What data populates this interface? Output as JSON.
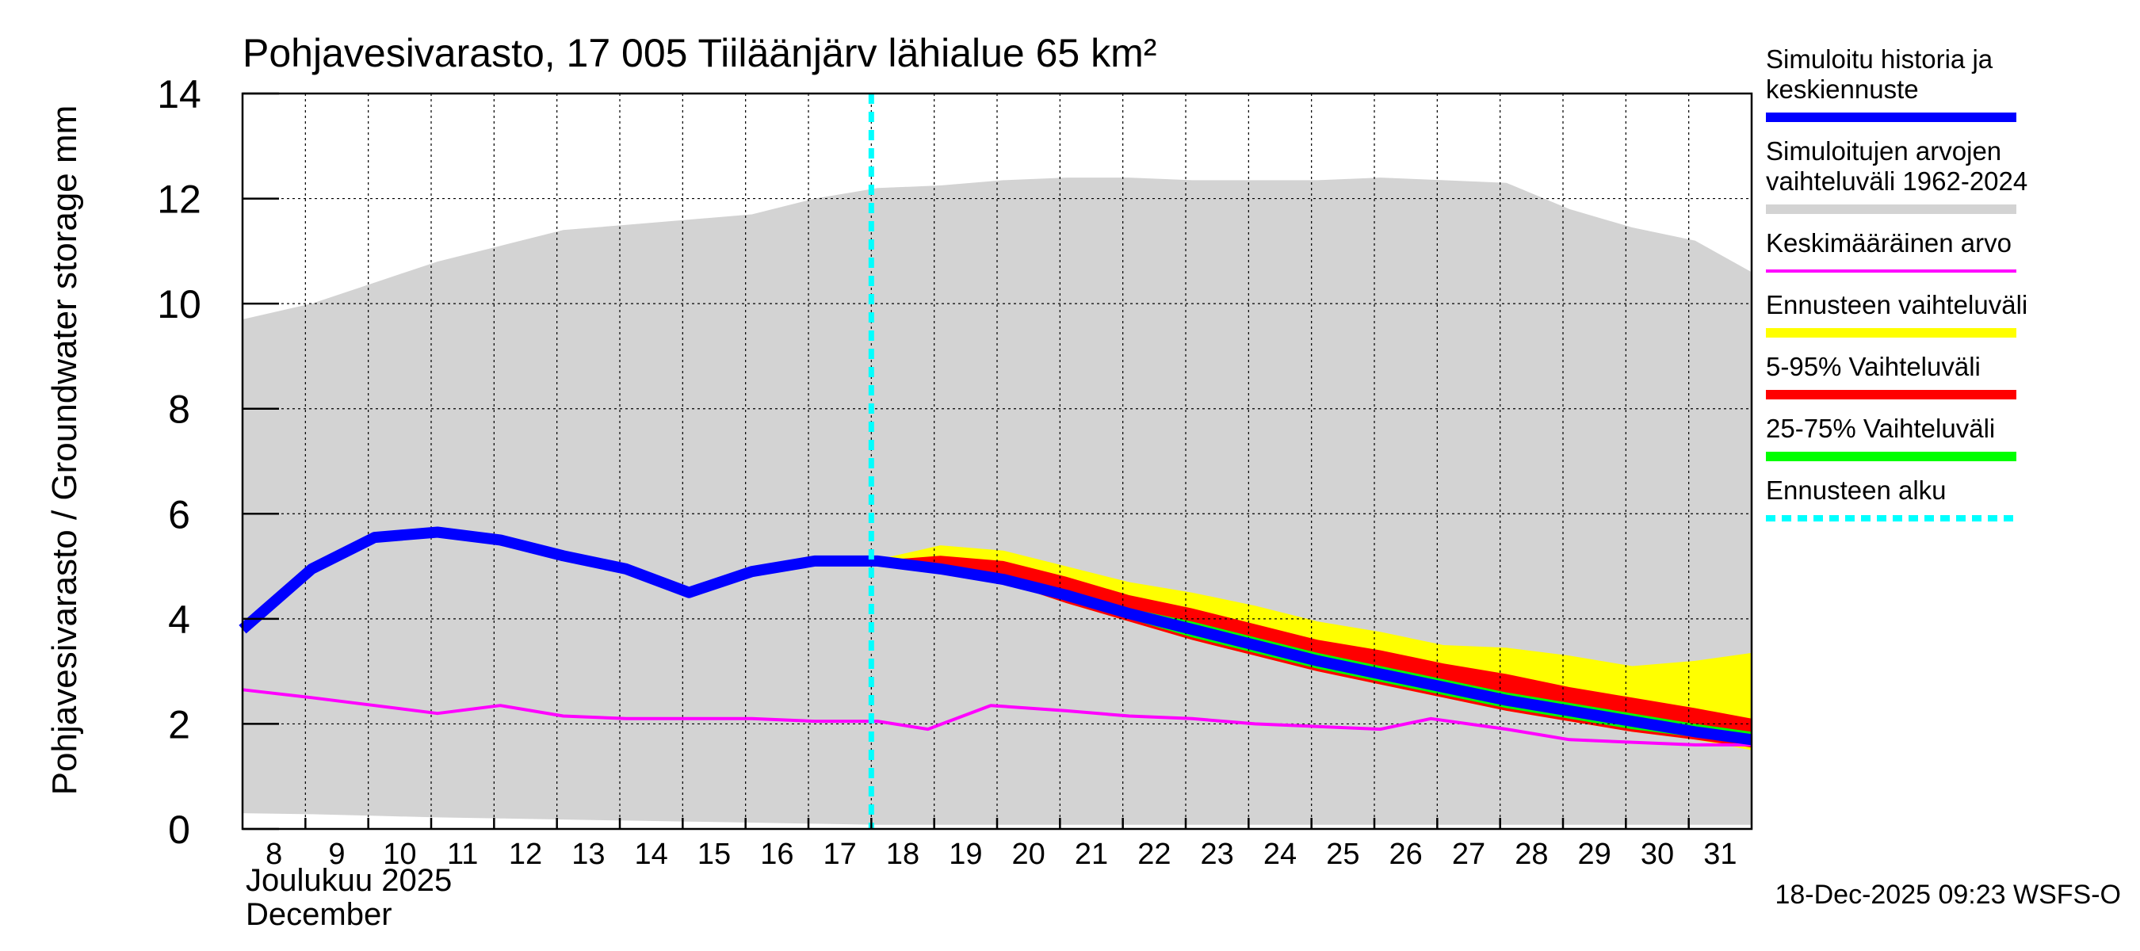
{
  "chart_data": {
    "type": "area",
    "title": "Pohjavesivarasto, 17 005 Tiiläänjärv lähialue 65 km²",
    "ylabel": "Pohjavesivarasto / Groundwater storage   mm",
    "xlabel_line1": "Joulukuu  2025",
    "xlabel_line2": "December",
    "timestamp": "18-Dec-2025 09:23 WSFS-O",
    "ylim": [
      0,
      14
    ],
    "yticks": [
      0,
      2,
      4,
      6,
      8,
      10,
      12,
      14
    ],
    "xlim": [
      7.9,
      31.9
    ],
    "xticks": [
      8,
      9,
      10,
      11,
      12,
      13,
      14,
      15,
      16,
      17,
      18,
      19,
      20,
      21,
      22,
      23,
      24,
      25,
      26,
      27,
      28,
      29,
      30,
      31
    ],
    "forecast_start": 17.9,
    "legend": [
      {
        "label": "Simuloitu historia ja keskiennuste",
        "color": "#0000ff",
        "style": "thick"
      },
      {
        "label": "Simuloitujen arvojen vaihteluväli 1962-2024",
        "color": "#d3d3d3",
        "style": "thick"
      },
      {
        "label": "Keskimääräinen arvo",
        "color": "#ff00ff",
        "style": "thin"
      },
      {
        "label": "Ennusteen vaihteluväli",
        "color": "#ffff00",
        "style": "thick"
      },
      {
        "label": "5-95% Vaihteluväli",
        "color": "#ff0000",
        "style": "thick"
      },
      {
        "label": "25-75% Vaihteluväli",
        "color": "#00ff00",
        "style": "thick"
      },
      {
        "label": "Ennusteen alku",
        "color": "#00ffff",
        "style": "dashed"
      }
    ],
    "series": [
      {
        "name": "Simuloitujen arvojen vaihteluväli 1962-2024",
        "x": [
          7.9,
          9,
          10,
          11,
          12,
          13,
          14,
          15,
          16,
          17,
          18,
          19,
          20,
          21,
          22,
          23,
          24,
          25,
          26,
          27,
          28,
          29,
          30,
          31,
          31.9
        ],
        "upper": [
          9.7,
          10.0,
          10.4,
          10.8,
          11.1,
          11.4,
          11.5,
          11.6,
          11.7,
          12.0,
          12.2,
          12.25,
          12.35,
          12.4,
          12.4,
          12.35,
          12.35,
          12.35,
          12.4,
          12.35,
          12.3,
          11.8,
          11.45,
          11.2,
          10.6
        ],
        "lower": [
          0.3,
          0.28,
          0.25,
          0.22,
          0.2,
          0.18,
          0.16,
          0.14,
          0.12,
          0.1,
          0.08,
          0.08,
          0.08,
          0.08,
          0.08,
          0.08,
          0.08,
          0.08,
          0.08,
          0.08,
          0.08,
          0.08,
          0.08,
          0.08,
          0.08
        ]
      },
      {
        "name": "Ennusteen vaihteluväli",
        "x": [
          17.9,
          19,
          20,
          21,
          22,
          23,
          24,
          25,
          26,
          27,
          28,
          29,
          30,
          31,
          31.9
        ],
        "upper": [
          5.1,
          5.4,
          5.3,
          5.0,
          4.7,
          4.5,
          4.25,
          3.95,
          3.75,
          3.5,
          3.45,
          3.3,
          3.1,
          3.2,
          3.35
        ],
        "lower": [
          5.1,
          4.95,
          4.7,
          4.3,
          3.95,
          3.6,
          3.3,
          3.0,
          2.75,
          2.5,
          2.25,
          2.05,
          1.85,
          1.7,
          1.5
        ]
      },
      {
        "name": "5-95% Vaihteluväli",
        "x": [
          17.9,
          19,
          20,
          21,
          22,
          23,
          24,
          25,
          26,
          27,
          28,
          29,
          30,
          31,
          31.9
        ],
        "upper": [
          5.1,
          5.2,
          5.1,
          4.8,
          4.45,
          4.2,
          3.9,
          3.6,
          3.4,
          3.15,
          2.95,
          2.7,
          2.5,
          2.3,
          2.1
        ],
        "lower": [
          5.1,
          4.95,
          4.7,
          4.3,
          3.95,
          3.6,
          3.3,
          3.0,
          2.75,
          2.5,
          2.25,
          2.05,
          1.85,
          1.7,
          1.55
        ]
      },
      {
        "name": "25-75% Vaihteluväli",
        "x": [
          17.9,
          19,
          20,
          21,
          22,
          23,
          24,
          25,
          26,
          27,
          28,
          29,
          30,
          31,
          31.9
        ],
        "upper": [
          5.1,
          5.05,
          4.85,
          4.5,
          4.2,
          3.95,
          3.65,
          3.35,
          3.1,
          2.85,
          2.6,
          2.4,
          2.2,
          2.0,
          1.85
        ],
        "lower": [
          5.1,
          4.98,
          4.72,
          4.35,
          4.0,
          3.65,
          3.35,
          3.05,
          2.8,
          2.55,
          2.3,
          2.1,
          1.9,
          1.75,
          1.6
        ]
      },
      {
        "name": "Keskimääräinen arvo",
        "x": [
          7.9,
          9,
          10,
          11,
          12,
          13,
          14,
          15,
          16,
          17,
          18,
          18.8,
          19.8,
          21,
          22,
          23,
          24,
          25,
          26,
          26.8,
          28,
          29,
          30,
          31,
          31.9
        ],
        "values": [
          2.65,
          2.5,
          2.35,
          2.2,
          2.35,
          2.15,
          2.1,
          2.1,
          2.1,
          2.05,
          2.05,
          1.9,
          2.35,
          2.25,
          2.15,
          2.1,
          2.0,
          1.95,
          1.9,
          2.1,
          1.9,
          1.7,
          1.65,
          1.6,
          1.6
        ]
      },
      {
        "name": "Simuloitu historia ja keskiennuste",
        "x": [
          7.9,
          9,
          10,
          11,
          12,
          13,
          14,
          15,
          16,
          17,
          18,
          19,
          20,
          21,
          22,
          23,
          24,
          25,
          26,
          27,
          28,
          29,
          30,
          31,
          31.9
        ],
        "values": [
          3.8,
          4.95,
          5.55,
          5.65,
          5.5,
          5.2,
          4.95,
          4.5,
          4.9,
          5.1,
          5.1,
          4.95,
          4.75,
          4.45,
          4.1,
          3.8,
          3.5,
          3.2,
          2.95,
          2.7,
          2.45,
          2.25,
          2.05,
          1.85,
          1.7
        ]
      }
    ]
  }
}
